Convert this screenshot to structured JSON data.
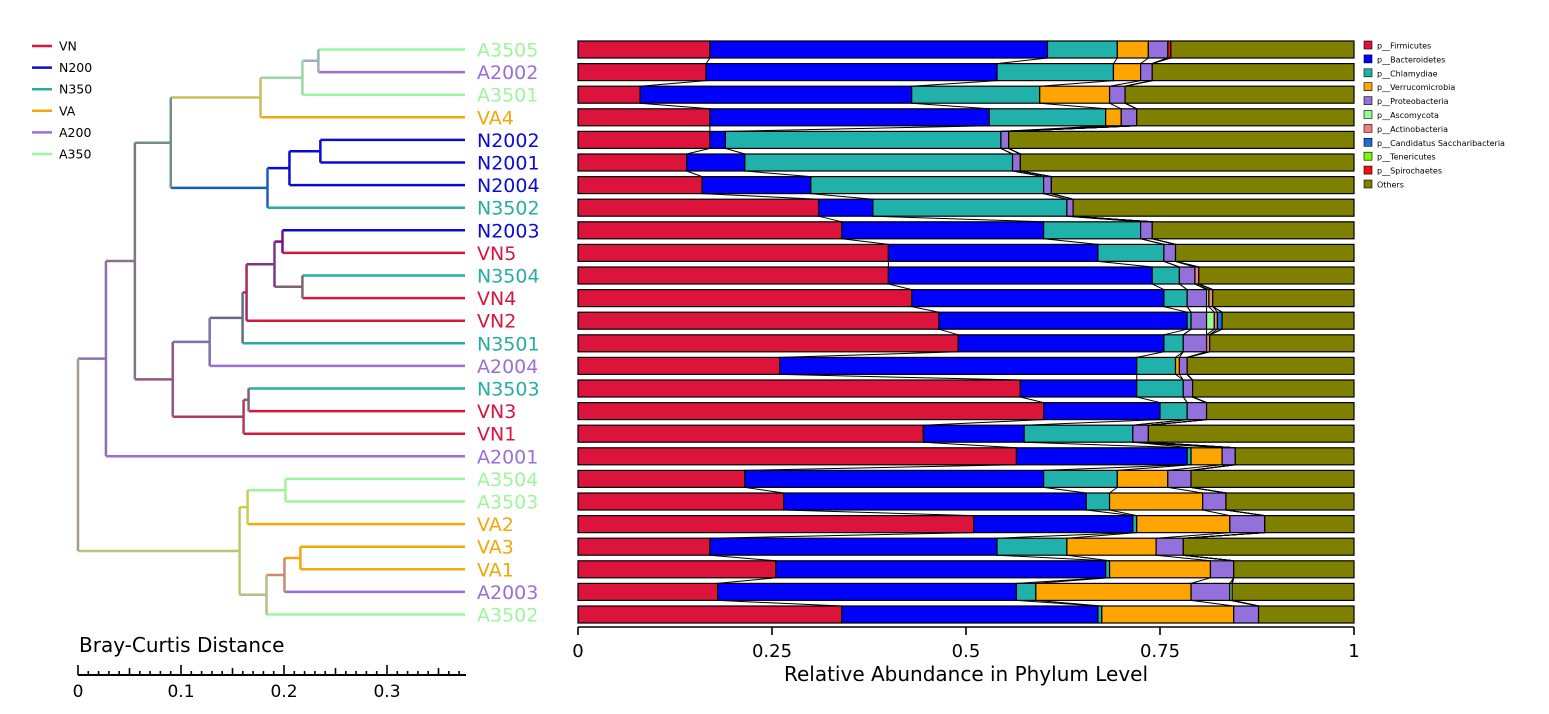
{
  "chart_data": {
    "type": "stacked-bar-with-dendrogram",
    "group_legend": [
      {
        "name": "VN",
        "color": "#d6163f"
      },
      {
        "name": "N200",
        "color": "#0b0bd6"
      },
      {
        "name": "N350",
        "color": "#26aea3"
      },
      {
        "name": "VA",
        "color": "#f2a70a"
      },
      {
        "name": "A200",
        "color": "#9a6fd6"
      },
      {
        "name": "A350",
        "color": "#9ef59b"
      }
    ],
    "samples": [
      {
        "name": "A3505",
        "group": "A350"
      },
      {
        "name": "A2002",
        "group": "A200"
      },
      {
        "name": "A3501",
        "group": "A350"
      },
      {
        "name": "VA4",
        "group": "VA"
      },
      {
        "name": "N2002",
        "group": "N200"
      },
      {
        "name": "N2001",
        "group": "N200"
      },
      {
        "name": "N2004",
        "group": "N200"
      },
      {
        "name": "N3502",
        "group": "N350"
      },
      {
        "name": "N2003",
        "group": "N200"
      },
      {
        "name": "VN5",
        "group": "VN"
      },
      {
        "name": "N3504",
        "group": "N350"
      },
      {
        "name": "VN4",
        "group": "VN"
      },
      {
        "name": "VN2",
        "group": "VN"
      },
      {
        "name": "N3501",
        "group": "N350"
      },
      {
        "name": "A2004",
        "group": "A200"
      },
      {
        "name": "N3503",
        "group": "N350"
      },
      {
        "name": "VN3",
        "group": "VN"
      },
      {
        "name": "VN1",
        "group": "VN"
      },
      {
        "name": "A2001",
        "group": "A200"
      },
      {
        "name": "A3504",
        "group": "A350"
      },
      {
        "name": "A3503",
        "group": "A350"
      },
      {
        "name": "VA2",
        "group": "VA"
      },
      {
        "name": "VA3",
        "group": "VA"
      },
      {
        "name": "VA1",
        "group": "VA"
      },
      {
        "name": "A2003",
        "group": "A200"
      },
      {
        "name": "A3502",
        "group": "A350"
      }
    ],
    "dendrogram": {
      "xlabel": "Bray-Curtis Distance",
      "xticks": [
        "0",
        "0.1",
        "0.2",
        "0.3"
      ],
      "tick_values": [
        0,
        0.1,
        0.2,
        0.3
      ],
      "xlim": [
        0,
        0.37
      ],
      "leaves": [
        "A3505",
        "A2002",
        "A3501",
        "VA4",
        "N2002",
        "N2001",
        "N2004",
        "N3502",
        "N2003",
        "VN5",
        "N3504",
        "VN4",
        "VN2",
        "N3501",
        "A2004",
        "N3503",
        "VN3",
        "VN1",
        "A2001",
        "A3504",
        "A3503",
        "VA2",
        "VA3",
        "VA1",
        "A2003",
        "A3502"
      ],
      "merges": [
        {
          "id": "c1",
          "a": "A3505",
          "b": "A2002",
          "height": 0.147
        },
        {
          "id": "c2",
          "a": "c1",
          "b": "A3501",
          "height": 0.163
        },
        {
          "id": "c3",
          "a": "c2",
          "b": "VA4",
          "height": 0.205
        },
        {
          "id": "c4",
          "a": "N2002",
          "b": "N2001",
          "height": 0.145
        },
        {
          "id": "c5",
          "a": "c4",
          "b": "N2004",
          "height": 0.176
        },
        {
          "id": "c6",
          "a": "c5",
          "b": "N3502",
          "height": 0.198
        },
        {
          "id": "c7",
          "a": "c3",
          "b": "c6",
          "height": 0.295
        },
        {
          "id": "c8",
          "a": "VN4",
          "b": "N3504",
          "height": 0.163
        },
        {
          "id": "c9",
          "a": "N2003",
          "b": "VN5",
          "height": 0.183
        },
        {
          "id": "c10",
          "a": "c9",
          "b": "c8",
          "height": 0.191
        },
        {
          "id": "c11",
          "a": "c10",
          "b": "VN2",
          "height": 0.219
        },
        {
          "id": "c12",
          "a": "c11",
          "b": "N3501",
          "height": 0.223
        },
        {
          "id": "c13",
          "a": "c12",
          "b": "A2004",
          "height": 0.256
        },
        {
          "id": "c14",
          "a": "N3503",
          "b": "VN3",
          "height": 0.217
        },
        {
          "id": "c15",
          "a": "c14",
          "b": "VN1",
          "height": 0.222
        },
        {
          "id": "c16",
          "a": "c13",
          "b": "c15",
          "height": 0.293
        },
        {
          "id": "c17",
          "a": "c7",
          "b": "c16",
          "height": 0.331
        },
        {
          "id": "c18",
          "a": "c17",
          "b": "A2001",
          "height": 0.36
        },
        {
          "id": "c19",
          "a": "A3504",
          "b": "A3503",
          "height": 0.18
        },
        {
          "id": "c20",
          "a": "c19",
          "b": "VA2",
          "height": 0.218
        },
        {
          "id": "c21",
          "a": "VA3",
          "b": "VA1",
          "height": 0.165
        },
        {
          "id": "c22",
          "a": "c21",
          "b": "A2003",
          "height": 0.181
        },
        {
          "id": "c23",
          "a": "c22",
          "b": "A3502",
          "height": 0.199
        },
        {
          "id": "c24",
          "a": "c20",
          "b": "c23",
          "height": 0.226
        },
        {
          "id": "c25",
          "a": "c18",
          "b": "c24",
          "height": 0.388
        }
      ]
    },
    "bars": {
      "xlabel": "Relative Abundance in Phylum Level",
      "xticks": [
        "0",
        "0.25",
        "0.5",
        "0.75",
        "1"
      ],
      "tick_values": [
        0,
        0.25,
        0.5,
        0.75,
        1
      ],
      "xlim": [
        0,
        1
      ],
      "series": [
        {
          "name": "p__Firmicutes",
          "color": "#dc143c",
          "values": [
            0.17,
            0.165,
            0.08,
            0.17,
            0.17,
            0.14,
            0.16,
            0.31,
            0.34,
            0.4,
            0.4,
            0.43,
            0.465,
            0.49,
            0.26,
            0.57,
            0.6,
            0.445,
            0.565,
            0.215,
            0.265,
            0.51,
            0.17,
            0.255,
            0.18,
            0.34
          ]
        },
        {
          "name": "p__Bacteroidetes",
          "color": "#0000ff",
          "values": [
            0.435,
            0.375,
            0.35,
            0.36,
            0.02,
            0.075,
            0.14,
            0.07,
            0.26,
            0.27,
            0.34,
            0.325,
            0.32,
            0.265,
            0.46,
            0.15,
            0.15,
            0.13,
            0.22,
            0.385,
            0.39,
            0.205,
            0.37,
            0.425,
            0.385,
            0.33
          ]
        },
        {
          "name": "p__Chlamydiae",
          "color": "#20b2aa",
          "values": [
            0.09,
            0.15,
            0.165,
            0.15,
            0.355,
            0.345,
            0.3,
            0.25,
            0.125,
            0.085,
            0.035,
            0.03,
            0.005,
            0.025,
            0.05,
            0.06,
            0.035,
            0.14,
            0.005,
            0.095,
            0.03,
            0.005,
            0.09,
            0.005,
            0.025,
            0.005
          ]
        },
        {
          "name": "p__Verrucomicrobia",
          "color": "#ffa500",
          "values": [
            0.04,
            0.035,
            0.09,
            0.02,
            0.0,
            0.0,
            0.0,
            0.0,
            0.0,
            0.0,
            0.0,
            0.0,
            0.0,
            0.0,
            0.005,
            0.0,
            0.0,
            0.0,
            0.04,
            0.065,
            0.12,
            0.12,
            0.115,
            0.13,
            0.2,
            0.17
          ]
        },
        {
          "name": "p__Proteobacteria",
          "color": "#9370db",
          "values": [
            0.025,
            0.015,
            0.02,
            0.02,
            0.01,
            0.01,
            0.01,
            0.008,
            0.015,
            0.015,
            0.02,
            0.025,
            0.02,
            0.03,
            0.01,
            0.012,
            0.025,
            0.02,
            0.017,
            0.03,
            0.03,
            0.045,
            0.035,
            0.03,
            0.05,
            0.032
          ]
        },
        {
          "name": "p__Ascomycota",
          "color": "#98fb98",
          "values": [
            0.0,
            0.0,
            0.0,
            0.0,
            0.0,
            0.0,
            0.0,
            0.0,
            0.0,
            0.0,
            0.0,
            0.003,
            0.01,
            0.0,
            0.0,
            0.0,
            0.0,
            0.0,
            0.0,
            0.0,
            0.0,
            0.0,
            0.0,
            0.0,
            0.003,
            0.0
          ]
        },
        {
          "name": "p__Actinobacteria",
          "color": "#f08080",
          "values": [
            0.0,
            0.0,
            0.0,
            0.0,
            0.0,
            0.0,
            0.0,
            0.0,
            0.0,
            0.0,
            0.005,
            0.005,
            0.004,
            0.004,
            0.0,
            0.0,
            0.0,
            0.0,
            0.0,
            0.0,
            0.0,
            0.0,
            0.0,
            0.0,
            0.0,
            0.0
          ]
        },
        {
          "name": "p__Candidatus Saccharibacteria",
          "color": "#1e6fd9",
          "values": [
            0.0,
            0.0,
            0.0,
            0.0,
            0.0,
            0.0,
            0.0,
            0.0,
            0.0,
            0.0,
            0.0,
            0.0,
            0.006,
            0.0,
            0.0,
            0.0,
            0.0,
            0.0,
            0.0,
            0.0,
            0.0,
            0.0,
            0.0,
            0.0,
            0.0,
            0.0
          ]
        },
        {
          "name": "p__Tenericutes",
          "color": "#7cfc00",
          "values": [
            0.0,
            0.0,
            0.0,
            0.0,
            0.0,
            0.0,
            0.0,
            0.0,
            0.0,
            0.0,
            0.0,
            0.0,
            0.0,
            0.0,
            0.0,
            0.0,
            0.0,
            0.0,
            0.0,
            0.0,
            0.0,
            0.0,
            0.0,
            0.0,
            0.0,
            0.0
          ]
        },
        {
          "name": "p__Spirochaetes",
          "color": "#ee1111",
          "values": [
            0.004,
            0.0,
            0.0,
            0.0,
            0.0,
            0.0,
            0.0,
            0.0,
            0.0,
            0.0,
            0.0,
            0.0,
            0.0,
            0.0,
            0.0,
            0.0,
            0.0,
            0.0,
            0.0,
            0.0,
            0.0,
            0.0,
            0.0,
            0.0,
            0.0,
            0.0
          ]
        },
        {
          "name": "Others",
          "color": "#808000",
          "remainder": true
        }
      ]
    }
  }
}
